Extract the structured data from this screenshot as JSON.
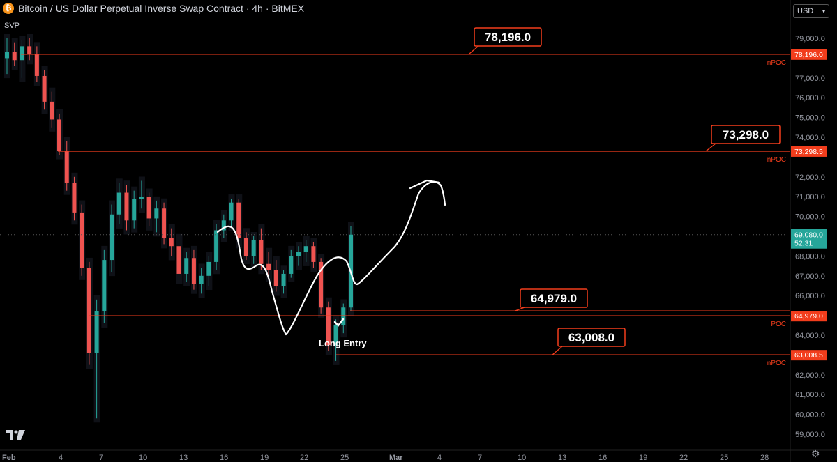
{
  "header": {
    "title": "Bitcoin / US Dollar Perpetual Inverse Swap Contract · 4h · BitMEX",
    "indicator": "SVP",
    "currency": "USD"
  },
  "icons": {
    "logo": "bitcoin-icon",
    "brand": "tradingview-logo",
    "settings": "gear-icon",
    "dropdown": "chevron-down-icon"
  },
  "colors": {
    "line": "#f23d1c",
    "bull": "#26a69a",
    "bear": "#ef5350",
    "bg": "#000000",
    "axis_text": "#9598a1"
  },
  "chart_data": {
    "type": "candlestick",
    "symbol": "Bitcoin / US Dollar Perpetual Inverse Swap Contract",
    "timeframe": "4h",
    "exchange": "BitMEX",
    "ylim": [
      58500,
      79500
    ],
    "x_ticks": [
      "Feb",
      "4",
      "7",
      "10",
      "13",
      "16",
      "19",
      "22",
      "25",
      "Mar",
      "4",
      "7",
      "10",
      "13",
      "16",
      "19",
      "22",
      "25",
      "28"
    ],
    "y_ticks": [
      "79,000.0",
      "77,000.0",
      "76,000.0",
      "75,000.0",
      "74,000.0",
      "72,000.0",
      "71,000.0",
      "70,000.0",
      "68,000.0",
      "67,000.0",
      "66,000.0",
      "64,000.0",
      "63,000.0",
      "62,000.0",
      "61,000.0",
      "60,000.0",
      "59,000.0"
    ],
    "y_tick_values": [
      79000,
      77000,
      76000,
      75000,
      74000,
      72000,
      71000,
      70000,
      68000,
      67000,
      66000,
      64000,
      63000,
      62000,
      61000,
      60000,
      59000
    ],
    "levels": [
      {
        "price": 78196.0,
        "callout": "78,196.0",
        "axis_label": "78,196.0",
        "tag": "nPOC"
      },
      {
        "price": 73298.5,
        "callout": "73,298.0",
        "axis_label": "73,298.5",
        "tag": "nPOC"
      },
      {
        "price": 65225.0,
        "callout": "64,979.0",
        "axis_label": "",
        "tag": ""
      },
      {
        "price": 64979.0,
        "callout": "",
        "axis_label": "64,979.0",
        "tag": "POC"
      },
      {
        "price": 63008.5,
        "callout": "63,008.0",
        "axis_label": "63,008.5",
        "tag": "nPOC"
      }
    ],
    "current_price": {
      "value": 69080.0,
      "label": "69,080.0",
      "countdown": "52:31"
    },
    "annotation": "Long Entry",
    "candles": [
      [
        78000,
        79000,
        77200,
        78300
      ],
      [
        78300,
        78800,
        77600,
        77900
      ],
      [
        77900,
        78900,
        77000,
        78600
      ],
      [
        78600,
        79000,
        77900,
        78200
      ],
      [
        78200,
        78600,
        76800,
        77100
      ],
      [
        77100,
        77400,
        75400,
        75800
      ],
      [
        75800,
        76300,
        74500,
        74900
      ],
      [
        74900,
        75200,
        73100,
        73300
      ],
      [
        73300,
        73800,
        71300,
        71700
      ],
      [
        71700,
        72000,
        69800,
        70200
      ],
      [
        70200,
        70600,
        67000,
        67400
      ],
      [
        67400,
        67700,
        62500,
        63100
      ],
      [
        63100,
        65800,
        59800,
        65200
      ],
      [
        65200,
        68300,
        64600,
        67800
      ],
      [
        67800,
        70600,
        67200,
        70100
      ],
      [
        70100,
        71700,
        69600,
        71200
      ],
      [
        71200,
        71600,
        69300,
        69800
      ],
      [
        69800,
        71300,
        69400,
        70900
      ],
      [
        70900,
        71800,
        70400,
        71000
      ],
      [
        71000,
        71200,
        69500,
        69900
      ],
      [
        69900,
        70800,
        69200,
        70400
      ],
      [
        70400,
        70700,
        68600,
        68900
      ],
      [
        68900,
        69400,
        68000,
        68500
      ],
      [
        68500,
        68900,
        66800,
        67100
      ],
      [
        67100,
        68200,
        66700,
        67900
      ],
      [
        67900,
        68300,
        66300,
        66600
      ],
      [
        66600,
        67400,
        66100,
        67000
      ],
      [
        67000,
        68000,
        66500,
        67700
      ],
      [
        67700,
        69600,
        67300,
        69300
      ],
      [
        69300,
        70100,
        68900,
        69800
      ],
      [
        69800,
        70900,
        69500,
        70700
      ],
      [
        70700,
        70900,
        68600,
        68900
      ],
      [
        68900,
        69200,
        67800,
        68000
      ],
      [
        68000,
        69000,
        67600,
        68800
      ],
      [
        68800,
        69400,
        67300,
        67600
      ],
      [
        67600,
        68200,
        66900,
        67300
      ],
      [
        67300,
        67800,
        66200,
        66500
      ],
      [
        66500,
        67300,
        66100,
        67100
      ],
      [
        67100,
        68300,
        66900,
        68000
      ],
      [
        68000,
        68500,
        67500,
        68200
      ],
      [
        68200,
        68800,
        67700,
        68500
      ],
      [
        68500,
        68700,
        67400,
        67700
      ],
      [
        67700,
        67900,
        65100,
        65400
      ],
      [
        65400,
        65700,
        63200,
        63500
      ],
      [
        63500,
        64800,
        62700,
        64500
      ],
      [
        64500,
        65600,
        64100,
        65400
      ],
      [
        65400,
        69500,
        65200,
        69080
      ]
    ]
  }
}
